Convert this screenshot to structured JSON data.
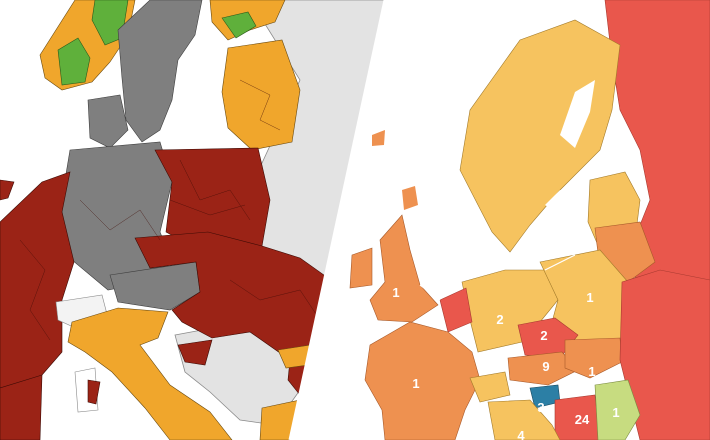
{
  "colors": {
    "left_background": "#ffffff",
    "no_data_gray": "#e3e3e3",
    "dark_red": "#9b2316",
    "gray": "#7f7f7f",
    "orange": "#f0a62c",
    "green": "#5fb03b",
    "water": "#ffffff",
    "right_background": "#ffffff",
    "light_orange": "#f6c35f",
    "medium_orange": "#ee9150",
    "red": "#e9574c",
    "light_green": "#c7dc80",
    "blue": "#2c7fa5"
  },
  "right_map_labels": [
    {
      "id": "uk",
      "text": "1"
    },
    {
      "id": "germany",
      "text": "2"
    },
    {
      "id": "czechia",
      "text": "2"
    },
    {
      "id": "poland",
      "text": "1"
    },
    {
      "id": "france",
      "text": "1"
    },
    {
      "id": "austria",
      "text": "9"
    },
    {
      "id": "slovakia",
      "text": "1"
    },
    {
      "id": "slovenia",
      "text": "3"
    },
    {
      "id": "croatia",
      "text": "24"
    },
    {
      "id": "serbia",
      "text": "1"
    },
    {
      "id": "italy",
      "text": "4"
    }
  ]
}
